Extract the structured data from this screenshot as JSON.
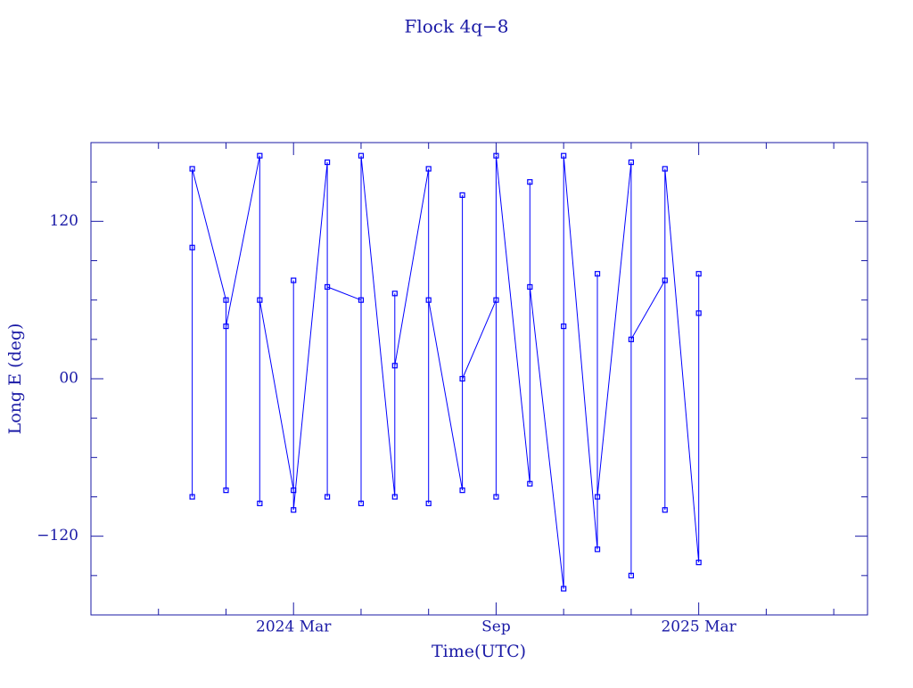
{
  "chart_data": {
    "type": "line",
    "title": "Flock 4q−8",
    "x_label": "Time(UTC)",
    "y_label": "Long E (deg)",
    "color": "#0000ff",
    "xlim": [
      "2023-09",
      "2025-08"
    ],
    "xticks": [
      {
        "value": "2024-03",
        "label": "2024 Mar"
      },
      {
        "value": "2024-09",
        "label": "Sep"
      },
      {
        "value": "2025-03",
        "label": "2025 Mar"
      }
    ],
    "xminorticks": [
      "2023-11",
      "2024-01",
      "2024-05",
      "2024-07",
      "2024-11",
      "2025-01",
      "2025-05",
      "2025-07"
    ],
    "ylim": [
      -180,
      180
    ],
    "yticks": [
      {
        "value": -120,
        "label": "−120"
      },
      {
        "value": 0,
        "label": "00"
      },
      120
    ],
    "yminorticks": [
      -150,
      -90,
      -60,
      -30,
      30,
      60,
      90,
      150
    ],
    "x": [
      "2023-12",
      "2023-12",
      "2023-12",
      "2024-01",
      "2024-01",
      "2024-01",
      "2024-02",
      "2024-02",
      "2024-02",
      "2024-03",
      "2024-03",
      "2024-03",
      "2024-04",
      "2024-04",
      "2024-04",
      "2024-05",
      "2024-05",
      "2024-05",
      "2024-06",
      "2024-06",
      "2024-06",
      "2024-07",
      "2024-07",
      "2024-07",
      "2024-08",
      "2024-08",
      "2024-08",
      "2024-09",
      "2024-09",
      "2024-09",
      "2024-10",
      "2024-10",
      "2024-10",
      "2024-11",
      "2024-11",
      "2024-11",
      "2024-12",
      "2024-12",
      "2024-12",
      "2025-01",
      "2025-01",
      "2025-01",
      "2025-02",
      "2025-02",
      "2025-02",
      "2025-03",
      "2025-03",
      "2025-03"
    ],
    "series": [
      {
        "color": "#0000ff",
        "values": [
          100,
          -90,
          160,
          60,
          -85,
          40,
          170,
          -95,
          60,
          -85,
          75,
          -100,
          165,
          -90,
          70,
          60,
          -95,
          170,
          -90,
          65,
          10,
          160,
          -95,
          60,
          -85,
          140,
          0,
          60,
          -90,
          170,
          -80,
          150,
          70,
          -160,
          40,
          170,
          -130,
          80,
          -90,
          165,
          -150,
          30,
          75,
          -100,
          160,
          -140,
          80,
          50
        ]
      }
    ]
  }
}
